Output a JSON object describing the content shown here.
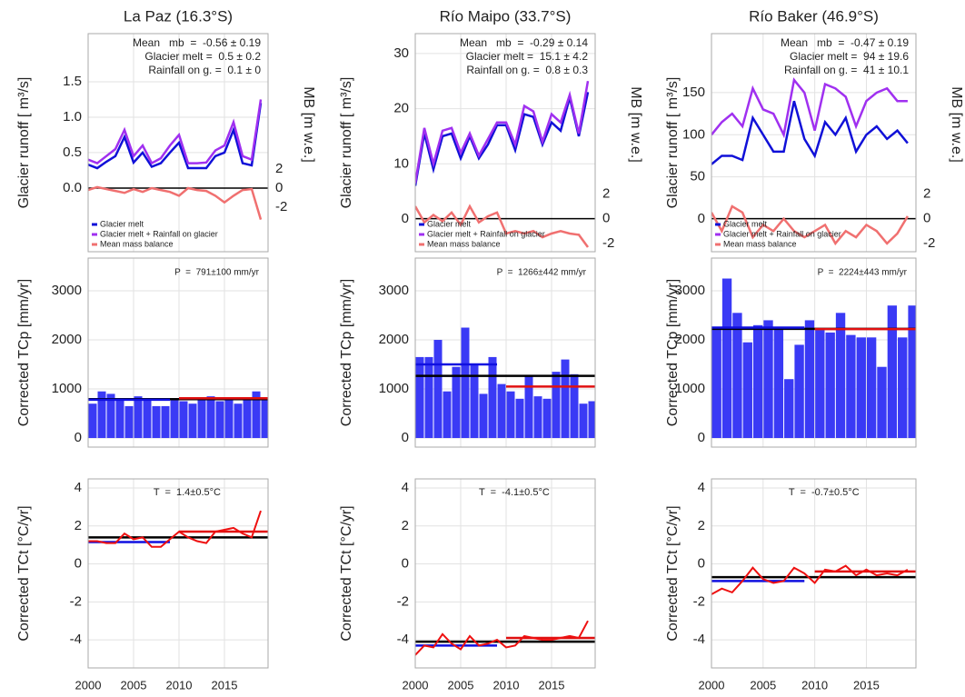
{
  "chart_data": [
    {
      "type": "line",
      "title": "La Paz (16.3°S)",
      "ylabel": "Glacier runoff [ m³/s]",
      "y2label": "MB [m w.e.]",
      "annotation": [
        "Mean   mb  =  -0.56 ± 0.19",
        "Glacier melt =  0.5 ± 0.2",
        "Rainfall on g. =  0.1 ± 0"
      ],
      "x": [
        2000,
        2001,
        2002,
        2003,
        2004,
        2005,
        2006,
        2007,
        2008,
        2009,
        2010,
        2011,
        2012,
        2013,
        2014,
        2015,
        2016,
        2017,
        2018,
        2019
      ],
      "series": [
        {
          "name": "Glacier melt",
          "color": "#1010d8",
          "values": [
            0.33,
            0.28,
            0.37,
            0.45,
            0.72,
            0.36,
            0.5,
            0.3,
            0.35,
            0.5,
            0.64,
            0.28,
            0.28,
            0.28,
            0.45,
            0.5,
            0.82,
            0.35,
            0.32,
            1.2
          ]
        },
        {
          "name": "Glacier melt + Rainfall on glacier",
          "color": "#a030f0",
          "values": [
            0.4,
            0.35,
            0.45,
            0.55,
            0.82,
            0.45,
            0.6,
            0.35,
            0.42,
            0.6,
            0.75,
            0.35,
            0.35,
            0.36,
            0.53,
            0.6,
            0.93,
            0.45,
            0.4,
            1.25
          ]
        },
        {
          "name": "Mean mass balance",
          "color": "#f07070",
          "axis": "y2",
          "values": [
            -0.2,
            0.1,
            -0.1,
            -0.3,
            -0.5,
            -0.1,
            -0.4,
            0,
            -0.2,
            -0.4,
            -0.8,
            0,
            -0.2,
            -0.3,
            -0.8,
            -1.5,
            -0.8,
            -0.2,
            -0.1,
            -3.3
          ]
        }
      ],
      "hlines": [
        {
          "color": "#000000",
          "value": 0,
          "axis": "y2"
        }
      ],
      "xlim": [
        2000,
        2019.8
      ],
      "xticks": [
        2000,
        2005,
        2010,
        2015
      ],
      "ylim": [
        -0.9,
        2.18
      ],
      "yticks": [
        {
          "value": 0,
          "label": "0.0"
        },
        0.5,
        {
          "value": 1,
          "label": "1.0"
        },
        1.5
      ],
      "y2lim": [
        -6.67,
        16.2
      ],
      "y2ticks": [
        -2,
        0,
        2
      ],
      "grid": true,
      "legend": "lower left",
      "xtick_labels": false
    },
    {
      "type": "line",
      "title": "Río Maipo (33.7°S)",
      "ylabel": "Glacier runoff [ m³/s]",
      "y2label": "MB [m w.e.]",
      "annotation": [
        "Mean   mb  =  -0.29 ± 0.14",
        "Glacier melt =  15.1 ± 4.2",
        "Rainfall on g. =  0.8 ± 0.3"
      ],
      "x": [
        2000,
        2001,
        2002,
        2003,
        2004,
        2005,
        2006,
        2007,
        2008,
        2009,
        2010,
        2011,
        2012,
        2013,
        2014,
        2015,
        2016,
        2017,
        2018,
        2019
      ],
      "series": [
        {
          "name": "Glacier melt",
          "color": "#1010d8",
          "values": [
            6,
            15.5,
            9,
            15,
            15.5,
            11,
            15,
            11,
            13.5,
            17,
            17,
            12.5,
            19,
            18.5,
            13.5,
            17.5,
            16,
            22,
            15,
            23
          ]
        },
        {
          "name": "Glacier melt + Rainfall on glacier",
          "color": "#a030f0",
          "values": [
            6.5,
            16.5,
            10,
            16,
            16.5,
            12,
            15.5,
            11.5,
            14.5,
            17.5,
            17.5,
            13.5,
            20.5,
            19.5,
            14,
            19,
            17.5,
            22.5,
            15.5,
            25
          ]
        },
        {
          "name": "Mean mass balance",
          "color": "#f07070",
          "axis": "y2",
          "values": [
            1,
            -0.3,
            0.3,
            -0.2,
            0.5,
            -0.5,
            1,
            -0.3,
            0.2,
            0.5,
            -1.2,
            -1,
            -1.2,
            -1,
            -1.5,
            -1.2,
            -1,
            -1.2,
            -1.3,
            -2.3
          ]
        }
      ],
      "hlines": [
        {
          "color": "#000000",
          "value": 0,
          "axis": "y2"
        }
      ],
      "xlim": [
        2000,
        2019.8
      ],
      "xticks": [
        2000,
        2005,
        2010,
        2015
      ],
      "ylim": [
        -5.93,
        33.6
      ],
      "yticks": [
        0,
        10,
        20,
        30
      ],
      "y2lim": [
        -2.67,
        14.96
      ],
      "y2ticks": [
        -2,
        0,
        2
      ],
      "grid": true,
      "legend": "lower left",
      "xtick_labels": false
    },
    {
      "type": "line",
      "title": "Río Baker (46.9°S)",
      "ylabel": "Glacier runoff [ m³/s]",
      "y2label": "MB [m w.e.]",
      "annotation": [
        "Mean   mb  =  -0.47 ± 0.19",
        "Glacier melt =  94 ± 19.6",
        "Rainfall on g. =  41 ± 10.1"
      ],
      "x": [
        2000,
        2001,
        2002,
        2003,
        2004,
        2005,
        2006,
        2007,
        2008,
        2009,
        2010,
        2011,
        2012,
        2013,
        2014,
        2015,
        2016,
        2017,
        2018,
        2019
      ],
      "series": [
        {
          "name": "Glacier melt",
          "color": "#1010d8",
          "values": [
            65,
            75,
            75,
            70,
            120,
            100,
            80,
            80,
            140,
            95,
            75,
            115,
            100,
            120,
            80,
            100,
            110,
            95,
            105,
            90
          ]
        },
        {
          "name": "Glacier melt + Rainfall on glacier",
          "color": "#a030f0",
          "values": [
            100,
            115,
            125,
            110,
            155,
            130,
            125,
            100,
            165,
            150,
            105,
            160,
            155,
            145,
            110,
            140,
            150,
            155,
            140,
            140
          ]
        },
        {
          "name": "Mean mass balance",
          "color": "#f07070",
          "axis": "y2",
          "values": [
            0.5,
            -1,
            1,
            0.5,
            -1.5,
            -0.5,
            -1,
            0,
            -1,
            -1.5,
            -1,
            -0.5,
            -2,
            -1,
            -1.5,
            -0.5,
            -1,
            -2,
            -1.2,
            0.2
          ]
        }
      ],
      "hlines": [
        {
          "color": "#000000",
          "value": 0,
          "axis": "y2"
        }
      ],
      "xlim": [
        2000,
        2019.8
      ],
      "xticks": [
        2000,
        2005,
        2010,
        2015
      ],
      "ylim": [
        -38.8,
        220
      ],
      "yticks": [
        0,
        50,
        100,
        150
      ],
      "y2lim": [
        -2.67,
        14.96
      ],
      "y2ticks": [
        -2,
        0,
        2
      ],
      "grid": true,
      "legend": "lower left",
      "xtick_labels": false
    },
    {
      "type": "bar",
      "ylabel": "Corrected TCp [mm/yr]",
      "annotation": [
        "P  =  791±100 mm/yr"
      ],
      "x": [
        2000,
        2001,
        2002,
        2003,
        2004,
        2005,
        2006,
        2007,
        2008,
        2009,
        2010,
        2011,
        2012,
        2013,
        2014,
        2015,
        2016,
        2017,
        2018,
        2019
      ],
      "values": [
        700,
        950,
        900,
        800,
        650,
        850,
        800,
        650,
        650,
        800,
        750,
        700,
        800,
        850,
        750,
        800,
        700,
        800,
        950,
        800
      ],
      "color": "#3a3af5",
      "hlines": [
        {
          "color": "#000000",
          "value": 791
        },
        {
          "color": "#1010e0",
          "value": 780,
          "from": 2000,
          "to": 2009
        },
        {
          "color": "#e01010",
          "value": 810,
          "from": 2010,
          "to": 2019.8
        }
      ],
      "xlim": [
        2000,
        2019.8
      ],
      "xticks": [
        2000,
        2005,
        2010,
        2015
      ],
      "ylim": [
        -185,
        3667
      ],
      "yticks": [
        0,
        1000,
        2000,
        3000
      ],
      "grid": true,
      "xtick_labels": false
    },
    {
      "type": "bar",
      "ylabel": "Corrected TCp [mm/yr]",
      "annotation": [
        "P  =  1266±442 mm/yr"
      ],
      "x": [
        2000,
        2001,
        2002,
        2003,
        2004,
        2005,
        2006,
        2007,
        2008,
        2009,
        2010,
        2011,
        2012,
        2013,
        2014,
        2015,
        2016,
        2017,
        2018,
        2019
      ],
      "values": [
        1650,
        1650,
        2000,
        950,
        1450,
        2250,
        1500,
        900,
        1650,
        1100,
        950,
        800,
        1250,
        850,
        800,
        1350,
        1600,
        1300,
        700,
        750
      ],
      "color": "#3a3af5",
      "hlines": [
        {
          "color": "#000000",
          "value": 1266
        },
        {
          "color": "#1010e0",
          "value": 1500,
          "from": 2000,
          "to": 2009
        },
        {
          "color": "#e01010",
          "value": 1050,
          "from": 2010,
          "to": 2019.8
        }
      ],
      "xlim": [
        2000,
        2019.8
      ],
      "xticks": [
        2000,
        2005,
        2010,
        2015
      ],
      "ylim": [
        -185,
        3667
      ],
      "yticks": [
        0,
        1000,
        2000,
        3000
      ],
      "grid": true,
      "xtick_labels": false
    },
    {
      "type": "bar",
      "ylabel": "Corrected TCp [mm/yr]",
      "annotation": [
        "P  =  2224±443 mm/yr"
      ],
      "x": [
        2000,
        2001,
        2002,
        2003,
        2004,
        2005,
        2006,
        2007,
        2008,
        2009,
        2010,
        2011,
        2012,
        2013,
        2014,
        2015,
        2016,
        2017,
        2018,
        2019
      ],
      "values": [
        2250,
        3250,
        2550,
        1950,
        2300,
        2400,
        2250,
        1200,
        1900,
        2400,
        2200,
        2150,
        2550,
        2100,
        2050,
        2050,
        1450,
        2700,
        2050,
        2700
      ],
      "color": "#3a3af5",
      "hlines": [
        {
          "color": "#000000",
          "value": 2224
        },
        {
          "color": "#1010e0",
          "value": 2250,
          "from": 2000,
          "to": 2009
        },
        {
          "color": "#e01010",
          "value": 2220,
          "from": 2010,
          "to": 2019.8
        }
      ],
      "xlim": [
        2000,
        2019.8
      ],
      "xticks": [
        2000,
        2005,
        2010,
        2015
      ],
      "ylim": [
        -185,
        3667
      ],
      "yticks": [
        0,
        1000,
        2000,
        3000
      ],
      "grid": true,
      "xtick_labels": false
    },
    {
      "type": "line",
      "ylabel": "Corrected TCt [°C/yr]",
      "annotation": [
        "T  =  1.4±0.5°C"
      ],
      "x": [
        2000,
        2001,
        2002,
        2003,
        2004,
        2005,
        2006,
        2007,
        2008,
        2009,
        2010,
        2011,
        2012,
        2013,
        2014,
        2015,
        2016,
        2017,
        2018,
        2019
      ],
      "series": [
        {
          "color": "#ee1010",
          "values": [
            1.2,
            1.2,
            1.1,
            1.1,
            1.6,
            1.3,
            1.4,
            0.9,
            0.9,
            1.3,
            1.7,
            1.4,
            1.2,
            1.1,
            1.7,
            1.8,
            1.9,
            1.6,
            1.4,
            2.8
          ]
        }
      ],
      "hlines": [
        {
          "color": "#000000",
          "value": 1.4
        },
        {
          "color": "#1010e0",
          "value": 1.15,
          "from": 2000,
          "to": 2009
        },
        {
          "color": "#e01010",
          "value": 1.7,
          "from": 2010,
          "to": 2019.8
        }
      ],
      "xlim": [
        2000,
        2019.8
      ],
      "xticks": [
        2000,
        2005,
        2010,
        2015
      ],
      "ylim": [
        -5.48,
        4.48
      ],
      "yticks": [
        -4,
        -2,
        0,
        2,
        4
      ],
      "grid": true,
      "xtick_labels": true
    },
    {
      "type": "line",
      "ylabel": "Corrected TCt [°C/yr]",
      "annotation": [
        "T  =  -4.1±0.5°C"
      ],
      "x": [
        2000,
        2001,
        2002,
        2003,
        2004,
        2005,
        2006,
        2007,
        2008,
        2009,
        2010,
        2011,
        2012,
        2013,
        2014,
        2015,
        2016,
        2017,
        2018,
        2019
      ],
      "series": [
        {
          "color": "#ee1010",
          "values": [
            -4.8,
            -4.3,
            -4.4,
            -3.7,
            -4.2,
            -4.5,
            -3.8,
            -4.3,
            -4.2,
            -4,
            -4.4,
            -4.3,
            -3.8,
            -3.9,
            -4,
            -4,
            -3.9,
            -3.8,
            -3.9,
            -3
          ]
        }
      ],
      "hlines": [
        {
          "color": "#000000",
          "value": -4.1
        },
        {
          "color": "#1010e0",
          "value": -4.3,
          "from": 2000,
          "to": 2009
        },
        {
          "color": "#e01010",
          "value": -3.9,
          "from": 2010,
          "to": 2019.8
        }
      ],
      "xlim": [
        2000,
        2019.8
      ],
      "xticks": [
        2000,
        2005,
        2010,
        2015
      ],
      "ylim": [
        -5.48,
        4.48
      ],
      "yticks": [
        -4,
        -2,
        0,
        2,
        4
      ],
      "grid": true,
      "xtick_labels": true
    },
    {
      "type": "line",
      "ylabel": "Corrected TCt [°C/yr]",
      "annotation": [
        "T  =  -0.7±0.5°C"
      ],
      "x": [
        2000,
        2001,
        2002,
        2003,
        2004,
        2005,
        2006,
        2007,
        2008,
        2009,
        2010,
        2011,
        2012,
        2013,
        2014,
        2015,
        2016,
        2017,
        2018,
        2019
      ],
      "series": [
        {
          "color": "#ee1010",
          "values": [
            -1.6,
            -1.3,
            -1.5,
            -0.9,
            -0.2,
            -0.8,
            -1,
            -0.9,
            -0.2,
            -0.5,
            -1,
            -0.3,
            -0.4,
            -0.1,
            -0.6,
            -0.3,
            -0.6,
            -0.5,
            -0.6,
            -0.3
          ]
        }
      ],
      "hlines": [
        {
          "color": "#000000",
          "value": -0.7
        },
        {
          "color": "#1010e0",
          "value": -0.9,
          "from": 2000,
          "to": 2009
        },
        {
          "color": "#e01010",
          "value": -0.4,
          "from": 2010,
          "to": 2019.8
        }
      ],
      "xlim": [
        2000,
        2019.8
      ],
      "xticks": [
        2000,
        2005,
        2010,
        2015
      ],
      "ylim": [
        -5.48,
        4.48
      ],
      "yticks": [
        -4,
        -2,
        0,
        2,
        4
      ],
      "grid": true,
      "xtick_labels": true
    }
  ]
}
